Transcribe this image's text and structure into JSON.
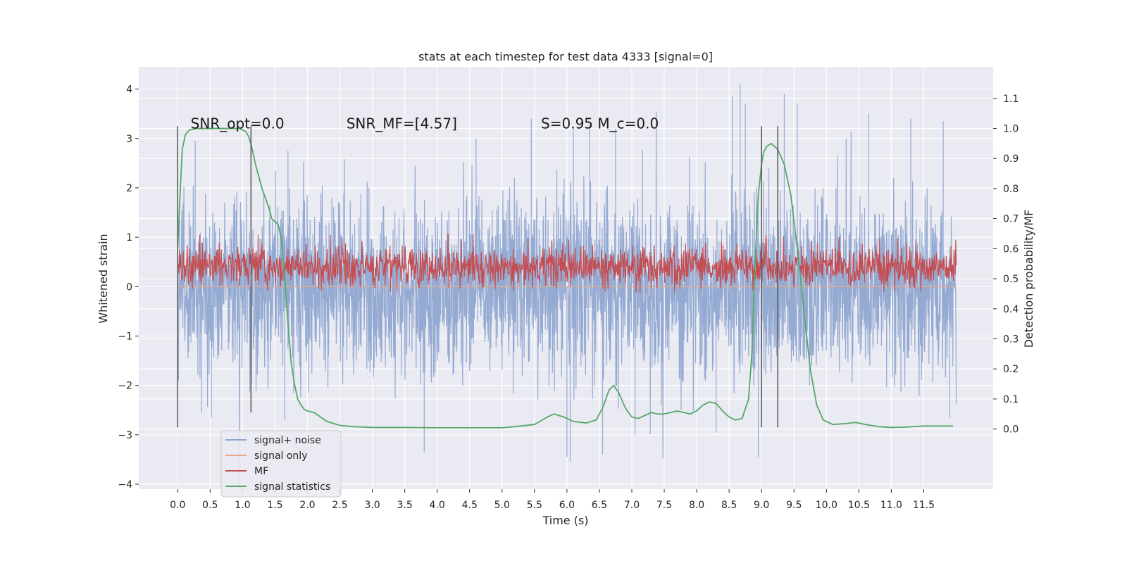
{
  "chart_data": {
    "type": "line",
    "title": "stats at each timestep for test data 4333 [signal=0]",
    "xlabel": "Time (s)",
    "ylabel": "Whitened strain",
    "ylabel_right": "Detection probability/MF",
    "xlim": [
      -0.6,
      12.57
    ],
    "ylim": [
      -4.1,
      4.45
    ],
    "ylim_right": [
      -0.2,
      1.205
    ],
    "x_ticks": [
      0.0,
      0.5,
      1.0,
      1.5,
      2.0,
      2.5,
      3.0,
      3.5,
      4.0,
      4.5,
      5.0,
      5.5,
      6.0,
      6.5,
      7.0,
      7.5,
      8.0,
      8.5,
      9.0,
      9.5,
      10.0,
      10.5,
      11.0,
      11.5
    ],
    "x_tick_labels": [
      "0.0",
      "0.5",
      "1.0",
      "1.5",
      "2.0",
      "2.5",
      "3.0",
      "3.5",
      "4.0",
      "4.5",
      "5.0",
      "5.5",
      "6.0",
      "6.5",
      "7.0",
      "7.5",
      "8.0",
      "8.5",
      "9.0",
      "9.5",
      "10.0",
      "10.5",
      "11.0",
      "11.5"
    ],
    "y_ticks": [
      -4,
      -3,
      -2,
      -1,
      0,
      1,
      2,
      3,
      4
    ],
    "y_tick_labels": [
      "−4",
      "−3",
      "−2",
      "−1",
      "0",
      "1",
      "2",
      "3",
      "4"
    ],
    "y_right_ticks": [
      0.0,
      0.1,
      0.2,
      0.3,
      0.4,
      0.5,
      0.6,
      0.7,
      0.8,
      0.9,
      1.0,
      1.1
    ],
    "y_right_tick_labels": [
      "0.0",
      "0.1",
      "0.2",
      "0.3",
      "0.4",
      "0.5",
      "0.6",
      "0.7",
      "0.8",
      "0.9",
      "1.0",
      "1.1"
    ],
    "grid": true,
    "legend_position": "lower-left",
    "annotations": [
      {
        "text": "SNR_opt=0.0",
        "x": 0.2,
        "y": 3.2
      },
      {
        "text": "SNR_MF=[4.57]",
        "x": 2.6,
        "y": 3.2
      },
      {
        "text": "S=0.95   M_c=0.0",
        "x": 5.6,
        "y": 3.2
      }
    ],
    "vertical_markers": [
      {
        "x": 0.0,
        "y_range": [
          -2.85,
          3.25
        ]
      },
      {
        "x": 1.13,
        "y_range": [
          -2.55,
          3.25
        ]
      },
      {
        "x": 9.0,
        "y_range": [
          -2.85,
          3.25
        ]
      },
      {
        "x": 9.25,
        "y_range": [
          -2.85,
          3.25
        ]
      }
    ],
    "series": [
      {
        "name": "signal+ noise",
        "axis": "left",
        "color": "#8fa6d0",
        "x_range": [
          0.0,
          12.0
        ],
        "envelope": {
          "typical_abs": 1.45,
          "peak_abs": 4.1
        },
        "spikes": [
          [
            0.27,
            2.95
          ],
          [
            1.7,
            2.75
          ],
          [
            1.65,
            -2.7
          ],
          [
            0.37,
            -2.55
          ],
          [
            0.52,
            -2.65
          ],
          [
            4.6,
            3.0
          ],
          [
            5.45,
            3.4
          ],
          [
            6.1,
            3.2
          ],
          [
            6.35,
            3.3
          ],
          [
            6.75,
            3.2
          ],
          [
            6.05,
            -3.55
          ],
          [
            6.0,
            -3.45
          ],
          [
            6.55,
            -3.4
          ],
          [
            8.67,
            4.1
          ],
          [
            8.55,
            3.85
          ],
          [
            8.75,
            3.7
          ],
          [
            8.95,
            -3.45
          ],
          [
            9.35,
            3.9
          ],
          [
            9.55,
            3.7
          ],
          [
            10.65,
            3.5
          ],
          [
            11.3,
            3.4
          ],
          [
            11.8,
            3.35
          ],
          [
            3.8,
            -3.35
          ],
          [
            7.05,
            -3.0
          ],
          [
            8.3,
            -2.95
          ],
          [
            11.9,
            -2.65
          ]
        ]
      },
      {
        "name": "signal only",
        "axis": "left",
        "color": "#e8a98a",
        "x": [
          0.0,
          12.0
        ],
        "values": [
          0.0,
          0.0
        ]
      },
      {
        "name": "MF",
        "axis": "right",
        "color": "#c44e52",
        "x_range": [
          0.0,
          12.0
        ],
        "band": [
          0.48,
          0.6
        ],
        "peak": 0.65
      },
      {
        "name": "signal statistics",
        "axis": "right",
        "color": "#55a868",
        "x": [
          0.0,
          0.03,
          0.07,
          0.12,
          0.18,
          0.3,
          0.5,
          0.75,
          0.95,
          1.05,
          1.1,
          1.15,
          1.2,
          1.3,
          1.4,
          1.45,
          1.5,
          1.55,
          1.6,
          1.65,
          1.7,
          1.75,
          1.8,
          1.85,
          1.9,
          1.95,
          2.0,
          2.1,
          2.2,
          2.3,
          2.5,
          2.7,
          3.0,
          3.5,
          4.0,
          4.5,
          5.0,
          5.2,
          5.5,
          5.7,
          5.8,
          5.95,
          6.1,
          6.3,
          6.45,
          6.55,
          6.65,
          6.72,
          6.8,
          6.9,
          7.0,
          7.1,
          7.2,
          7.3,
          7.4,
          7.5,
          7.6,
          7.7,
          7.8,
          7.9,
          8.0,
          8.1,
          8.2,
          8.3,
          8.4,
          8.5,
          8.6,
          8.7,
          8.8,
          8.85,
          8.9,
          8.95,
          9.0,
          9.03,
          9.08,
          9.15,
          9.25,
          9.35,
          9.45,
          9.55,
          9.65,
          9.75,
          9.85,
          9.95,
          10.1,
          10.3,
          10.45,
          10.6,
          10.8,
          11.0,
          11.2,
          11.5,
          11.8,
          11.95
        ],
        "values": [
          0.6,
          0.75,
          0.93,
          0.98,
          0.995,
          1.0,
          1.0,
          1.0,
          1.0,
          0.99,
          0.97,
          0.93,
          0.88,
          0.8,
          0.74,
          0.7,
          0.69,
          0.68,
          0.63,
          0.5,
          0.35,
          0.22,
          0.15,
          0.1,
          0.08,
          0.065,
          0.06,
          0.055,
          0.04,
          0.025,
          0.012,
          0.008,
          0.005,
          0.005,
          0.004,
          0.004,
          0.004,
          0.008,
          0.015,
          0.04,
          0.05,
          0.04,
          0.025,
          0.02,
          0.03,
          0.07,
          0.13,
          0.145,
          0.12,
          0.07,
          0.04,
          0.035,
          0.045,
          0.055,
          0.05,
          0.05,
          0.055,
          0.06,
          0.055,
          0.05,
          0.06,
          0.08,
          0.09,
          0.085,
          0.06,
          0.04,
          0.03,
          0.035,
          0.1,
          0.25,
          0.55,
          0.78,
          0.88,
          0.92,
          0.94,
          0.95,
          0.93,
          0.88,
          0.78,
          0.6,
          0.4,
          0.2,
          0.08,
          0.03,
          0.015,
          0.018,
          0.022,
          0.015,
          0.008,
          0.005,
          0.006,
          0.01,
          0.01,
          0.01
        ]
      }
    ]
  }
}
